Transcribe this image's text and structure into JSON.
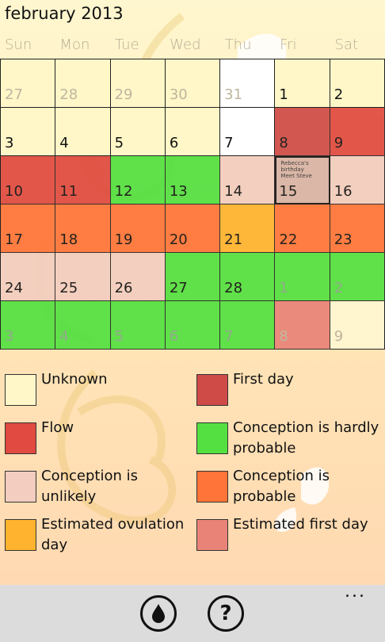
{
  "header": {
    "title": "february 2013"
  },
  "weekdays": [
    "Sun",
    "Mon",
    "Tue",
    "Wed",
    "Thu",
    "Fri",
    "Sat"
  ],
  "colors": {
    "unknown": "#fff7c8",
    "first_day": "#cf4b48",
    "flow": "#e04a40",
    "hardly": "#53e040",
    "unlikely": "#f2cdc0",
    "probable": "#ff7438",
    "ovulation": "#ffb32e",
    "est_first": "#e98378",
    "white": "#ffffff",
    "other_unknown": "#fff5cf",
    "today": "#d9b3a5"
  },
  "calendar": {
    "rows": [
      [
        {
          "n": "27",
          "c": "unknown",
          "o": true
        },
        {
          "n": "28",
          "c": "unknown",
          "o": true
        },
        {
          "n": "29",
          "c": "unknown",
          "o": true
        },
        {
          "n": "30",
          "c": "unknown",
          "o": true
        },
        {
          "n": "31",
          "c": "white",
          "o": true
        },
        {
          "n": "1",
          "c": "unknown"
        },
        {
          "n": "2",
          "c": "unknown"
        }
      ],
      [
        {
          "n": "3",
          "c": "unknown"
        },
        {
          "n": "4",
          "c": "unknown"
        },
        {
          "n": "5",
          "c": "unknown"
        },
        {
          "n": "6",
          "c": "unknown"
        },
        {
          "n": "7",
          "c": "white"
        },
        {
          "n": "8",
          "c": "first_day"
        },
        {
          "n": "9",
          "c": "flow"
        }
      ],
      [
        {
          "n": "10",
          "c": "flow"
        },
        {
          "n": "11",
          "c": "flow"
        },
        {
          "n": "12",
          "c": "hardly"
        },
        {
          "n": "13",
          "c": "hardly"
        },
        {
          "n": "14",
          "c": "unlikely"
        },
        {
          "n": "15",
          "c": "today",
          "note": "Rebecca's birthday\nMeet Steve"
        },
        {
          "n": "16",
          "c": "unlikely"
        }
      ],
      [
        {
          "n": "17",
          "c": "probable"
        },
        {
          "n": "18",
          "c": "probable"
        },
        {
          "n": "19",
          "c": "probable"
        },
        {
          "n": "20",
          "c": "probable"
        },
        {
          "n": "21",
          "c": "ovulation"
        },
        {
          "n": "22",
          "c": "probable"
        },
        {
          "n": "23",
          "c": "probable"
        }
      ],
      [
        {
          "n": "24",
          "c": "unlikely"
        },
        {
          "n": "25",
          "c": "unlikely"
        },
        {
          "n": "26",
          "c": "unlikely"
        },
        {
          "n": "27",
          "c": "hardly"
        },
        {
          "n": "28",
          "c": "hardly"
        },
        {
          "n": "1",
          "c": "hardly",
          "o": true,
          "d": true
        },
        {
          "n": "2",
          "c": "hardly",
          "o": true,
          "d": true
        }
      ],
      [
        {
          "n": "3",
          "c": "hardly",
          "o": true,
          "d": true
        },
        {
          "n": "4",
          "c": "hardly",
          "o": true,
          "d": true
        },
        {
          "n": "5",
          "c": "hardly",
          "o": true,
          "d": true
        },
        {
          "n": "6",
          "c": "hardly",
          "o": true,
          "d": true
        },
        {
          "n": "7",
          "c": "hardly",
          "o": true,
          "d": true
        },
        {
          "n": "8",
          "c": "est_first",
          "o": true
        },
        {
          "n": "9",
          "c": "other_unknown",
          "o": true
        }
      ]
    ]
  },
  "legend": [
    {
      "label": "Unknown",
      "color": "unknown"
    },
    {
      "label": "First day",
      "color": "first_day"
    },
    {
      "label": "Flow",
      "color": "flow"
    },
    {
      "label": "Conception is hardly probable",
      "color": "hardly"
    },
    {
      "label": "Conception is unlikely",
      "color": "unlikely"
    },
    {
      "label": "Conception is probable",
      "color": "probable"
    },
    {
      "label": "Estimated ovulation day",
      "color": "ovulation"
    },
    {
      "label": "Estimated first day",
      "color": "est_first"
    }
  ],
  "appbar": {
    "buttons": [
      {
        "icon": "drop-icon"
      },
      {
        "icon": "help-icon",
        "glyph": "?"
      }
    ],
    "more": "..."
  }
}
